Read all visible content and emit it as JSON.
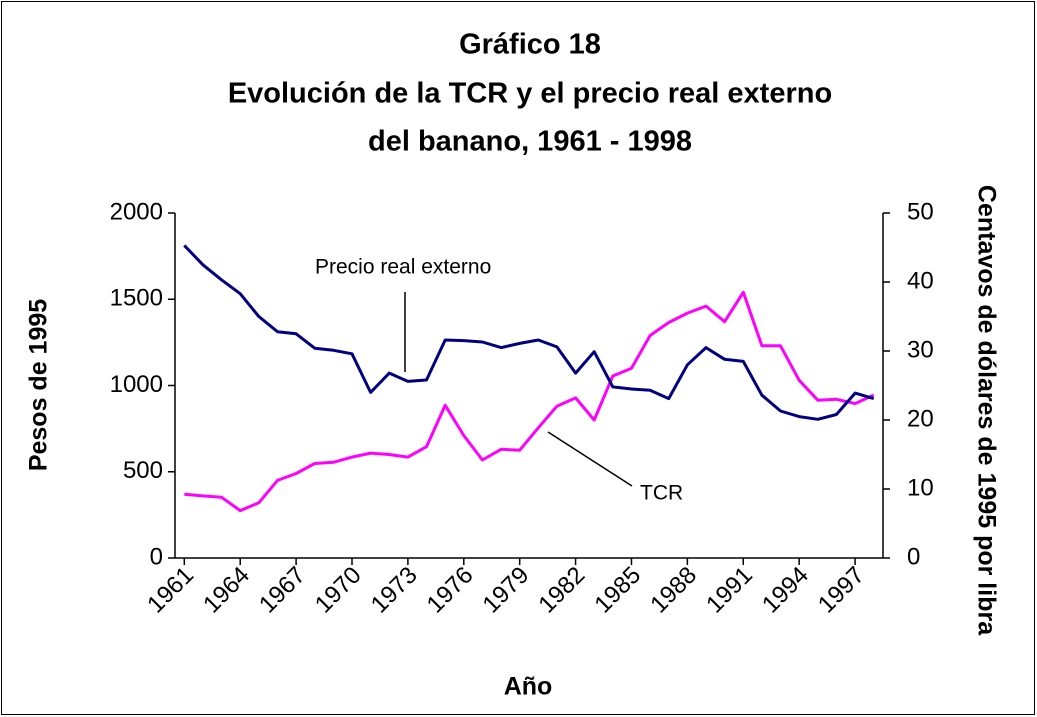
{
  "chart_data": {
    "type": "line",
    "title": [
      "Gráfico 18",
      "Evolución de la TCR y el precio real externo",
      "del banano, 1961 - 1998"
    ],
    "x_label": "Año",
    "y_label": "Pesos de 1995",
    "y2_label": "Centavos de dólares de 1995 por libra",
    "annotations": [
      "Precio real externo",
      "TCR"
    ],
    "x": [
      1961,
      1962,
      1963,
      1964,
      1965,
      1966,
      1967,
      1968,
      1969,
      1970,
      1971,
      1972,
      1973,
      1974,
      1975,
      1976,
      1977,
      1978,
      1979,
      1980,
      1981,
      1982,
      1983,
      1984,
      1985,
      1986,
      1987,
      1988,
      1989,
      1990,
      1991,
      1992,
      1993,
      1994,
      1995,
      1996,
      1997,
      1998
    ],
    "xlim": [
      1960.5,
      1998.5
    ],
    "xticks": [
      1961,
      1964,
      1967,
      1970,
      1973,
      1976,
      1979,
      1982,
      1985,
      1988,
      1991,
      1994,
      1997
    ],
    "ylim": [
      0,
      2000
    ],
    "yticks": [
      0,
      500,
      1000,
      1500,
      2000
    ],
    "y2lim": [
      0,
      50
    ],
    "y2ticks": [
      0,
      10,
      20,
      30,
      40,
      50
    ],
    "grid": false,
    "series": [
      {
        "name": "TCR",
        "color": "#ff00ff",
        "values": [
          370,
          360,
          352,
          275,
          320,
          450,
          490,
          548,
          555,
          585,
          608,
          600,
          585,
          645,
          885,
          710,
          568,
          630,
          625,
          755,
          880,
          928,
          800,
          1055,
          1100,
          1290,
          1365,
          1420,
          1460,
          1370,
          1540,
          1230,
          1230,
          1030,
          915,
          920,
          895,
          945
        ]
      },
      {
        "name": "Precio real externo",
        "color": "#000080",
        "axis": "y2",
        "values": [
          45.3,
          42.5,
          40.3,
          38.3,
          35,
          32.8,
          32.5,
          30.4,
          30.1,
          29.6,
          24,
          26.8,
          25.6,
          25.8,
          31.6,
          31.5,
          31.3,
          30.5,
          31.1,
          31.6,
          30.6,
          26.8,
          29.9,
          24.8,
          24.5,
          24.3,
          23.1,
          28,
          30.5,
          28.8,
          28.5,
          23.6,
          21.3,
          20.5,
          20.1,
          20.8,
          23.9,
          23.1
        ]
      }
    ]
  }
}
